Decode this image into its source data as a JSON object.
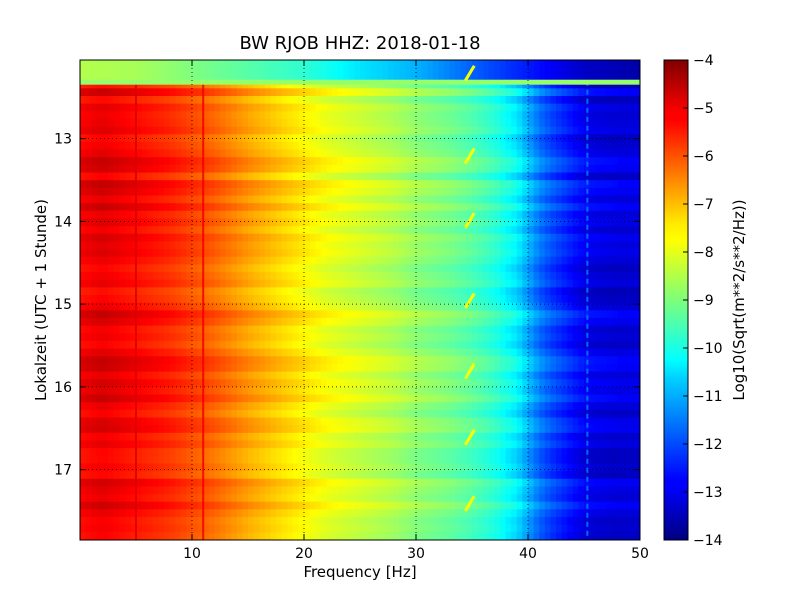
{
  "chart_data": {
    "type": "heatmap",
    "title": "BW RJOB HHZ: 2018-01-18",
    "xlabel": "Frequency [Hz]",
    "ylabel": "Lokalzeit (UTC + 1 Stunde)",
    "colorbar_label": "Log10(Sqrt(m**2/s**2/Hz))",
    "xlim": [
      0,
      50
    ],
    "ylim": [
      12.05,
      17.85
    ],
    "y_inverted": true,
    "x_ticks": [
      10,
      20,
      30,
      40,
      50
    ],
    "y_ticks": [
      13,
      14,
      15,
      16,
      17
    ],
    "colorbar_ticks": [
      -4,
      -5,
      -6,
      -7,
      -8,
      -9,
      -10,
      -11,
      -12,
      -13,
      -14
    ],
    "colorbar_range": [
      -14,
      -4
    ],
    "colormap": "jet",
    "grid": true,
    "grid_style": "dotted",
    "spectral_profile": {
      "frequencies_hz": [
        0,
        2,
        5,
        8,
        10,
        12,
        15,
        18,
        20,
        22,
        25,
        28,
        30,
        33,
        35,
        37,
        39,
        40,
        41,
        42,
        43,
        44,
        45,
        46,
        48,
        50
      ],
      "log10_psd": [
        -5.2,
        -5.0,
        -5.3,
        -5.6,
        -5.9,
        -6.2,
        -6.8,
        -7.3,
        -7.6,
        -7.9,
        -8.2,
        -8.5,
        -8.8,
        -9.1,
        -9.4,
        -9.8,
        -10.4,
        -11.0,
        -11.6,
        -12.0,
        -12.3,
        -12.6,
        -12.9,
        -13.0,
        -13.1,
        -13.1
      ]
    },
    "top_band": {
      "time_range": [
        12.05,
        12.3
      ],
      "frequencies_hz": [
        0,
        5,
        10,
        20,
        25,
        30,
        35,
        40,
        45,
        50
      ],
      "log10_psd": [
        -8.5,
        -8.6,
        -9.0,
        -9.8,
        -10.5,
        -11.0,
        -11.8,
        -12.5,
        -13.3,
        -13.6
      ]
    },
    "divider_line": {
      "time": 12.3,
      "log10_psd": -8.8
    },
    "hourly_transients": {
      "times": [
        12.2,
        13.2,
        13.98,
        14.95,
        15.8,
        16.6,
        17.4
      ],
      "frequency_hz": 34.8,
      "log10_psd": -7.8
    },
    "persistent_lines": {
      "frequencies_hz": [
        5,
        11,
        45.3
      ],
      "log10_psd": [
        -4.9,
        -5.1,
        -11.5
      ]
    }
  }
}
